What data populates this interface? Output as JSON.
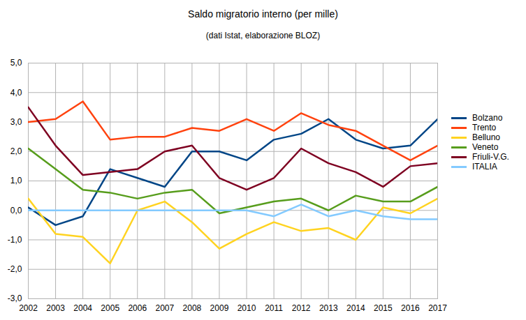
{
  "chart_data": {
    "type": "line",
    "title": "Saldo migratorio interno (per mille)",
    "subtitle": "(dati Istat, elaborazione BLOZ)",
    "x": [
      2002,
      2003,
      2004,
      2005,
      2006,
      2007,
      2008,
      2009,
      2010,
      2011,
      2012,
      2013,
      2014,
      2015,
      2016,
      2017
    ],
    "series": [
      {
        "name": "Bolzano",
        "color": "#004586",
        "values": [
          0.1,
          -0.5,
          -0.2,
          1.4,
          1.1,
          0.8,
          2.0,
          2.0,
          1.7,
          2.4,
          2.6,
          3.1,
          2.4,
          2.1,
          2.2,
          3.1
        ]
      },
      {
        "name": "Trento",
        "color": "#ff420e",
        "values": [
          3.0,
          3.1,
          3.7,
          2.4,
          2.5,
          2.5,
          2.8,
          2.7,
          3.1,
          2.7,
          3.3,
          2.9,
          2.7,
          2.2,
          1.7,
          2.2
        ]
      },
      {
        "name": "Belluno",
        "color": "#ffd320",
        "values": [
          0.4,
          -0.8,
          -0.9,
          -1.8,
          0.0,
          0.3,
          -0.4,
          -1.3,
          -0.8,
          -0.4,
          -0.7,
          -0.6,
          -1.0,
          0.1,
          -0.1,
          0.4
        ]
      },
      {
        "name": "Veneto",
        "color": "#579d1c",
        "values": [
          2.1,
          1.4,
          0.7,
          0.6,
          0.4,
          0.6,
          0.7,
          -0.1,
          0.1,
          0.3,
          0.4,
          0.0,
          0.5,
          0.3,
          0.3,
          0.8
        ]
      },
      {
        "name": "Friuli-V.G.",
        "color": "#7e0021",
        "values": [
          3.5,
          2.2,
          1.2,
          1.3,
          1.4,
          2.0,
          2.2,
          1.1,
          0.7,
          1.1,
          2.1,
          1.6,
          1.3,
          0.8,
          1.5,
          1.6
        ]
      },
      {
        "name": "ITALIA",
        "color": "#83caff",
        "values": [
          0.0,
          0.0,
          0.0,
          0.0,
          0.0,
          0.0,
          0.0,
          0.0,
          0.0,
          -0.2,
          0.2,
          -0.2,
          0.0,
          -0.2,
          -0.3,
          -0.3
        ]
      }
    ],
    "xlim": [
      2002,
      2017
    ],
    "xticks": [
      2002,
      2003,
      2004,
      2005,
      2006,
      2007,
      2008,
      2009,
      2010,
      2011,
      2012,
      2013,
      2014,
      2015,
      2016,
      2017
    ],
    "ylim": [
      -3,
      5
    ],
    "yticks": [
      {
        "value": -3,
        "label": "-3,0"
      },
      {
        "value": -2,
        "label": "-2,0"
      },
      {
        "value": -1,
        "label": "-1,0"
      },
      {
        "value": 0,
        "label": "0,0"
      },
      {
        "value": 1,
        "label": "1,0"
      },
      {
        "value": 2,
        "label": "2,0"
      },
      {
        "value": 3,
        "label": "3,0"
      },
      {
        "value": 4,
        "label": "4,0"
      },
      {
        "value": 5,
        "label": "5,0"
      }
    ],
    "grid": true,
    "legend": "right"
  }
}
